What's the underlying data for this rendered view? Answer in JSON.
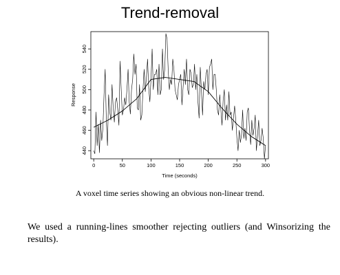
{
  "slide": {
    "title": "Trend-removal",
    "caption": "A voxel time series showing an obvious non-linear trend.",
    "body": "We used a running-lines smoother rejecting outliers (and Winsorizing the results)."
  },
  "chart_data": {
    "type": "line",
    "xlabel": "Time (seconds)",
    "ylabel": "Response",
    "xlim": [
      -5,
      305
    ],
    "ylim": [
      432,
      557
    ],
    "xticks": [
      0,
      50,
      100,
      150,
      200,
      250,
      300
    ],
    "yticks": [
      440,
      460,
      480,
      500,
      520,
      540
    ],
    "grid": false,
    "series": [
      {
        "x": [
          0,
          2,
          4,
          6,
          8,
          10,
          12,
          14,
          16,
          18,
          20,
          22,
          24,
          26,
          28,
          30,
          32,
          34,
          36,
          38,
          40,
          42,
          44,
          46,
          48,
          50,
          52,
          54,
          56,
          58,
          60,
          62,
          64,
          66,
          68,
          70,
          72,
          74,
          76,
          78,
          80,
          82,
          84,
          86,
          88,
          90,
          92,
          94,
          96,
          98,
          100,
          102,
          104,
          106,
          108,
          110,
          112,
          114,
          116,
          118,
          120,
          122,
          124,
          126,
          128,
          130,
          132,
          134,
          136,
          138,
          140,
          142,
          144,
          146,
          148,
          150,
          152,
          154,
          156,
          158,
          160,
          162,
          164,
          166,
          168,
          170,
          172,
          174,
          176,
          178,
          180,
          182,
          184,
          186,
          188,
          190,
          192,
          194,
          196,
          198,
          200,
          202,
          204,
          206,
          208,
          210,
          212,
          214,
          216,
          218,
          220,
          222,
          224,
          226,
          228,
          230,
          232,
          234,
          236,
          238,
          240,
          242,
          244,
          246,
          248,
          250,
          252,
          254,
          256,
          258,
          260,
          262,
          264,
          266,
          268,
          270,
          272,
          274,
          276,
          278,
          280,
          282,
          284,
          286,
          288,
          290,
          292,
          294,
          296,
          298,
          300
        ],
        "values": [
          440,
          437,
          478,
          445,
          466,
          438,
          470,
          450,
          462,
          495,
          520,
          470,
          445,
          495,
          478,
          470,
          505,
          482,
          468,
          488,
          492,
          480,
          465,
          528,
          500,
          475,
          480,
          492,
          485,
          500,
          520,
          488,
          476,
          500,
          510,
          535,
          515,
          525,
          482,
          480,
          505,
          470,
          475,
          500,
          520,
          498,
          512,
          530,
          502,
          488,
          510,
          540,
          500,
          515,
          515,
          520,
          495,
          525,
          495,
          500,
          540,
          510,
          520,
          555,
          550,
          520,
          500,
          510,
          505,
          530,
          520,
          500,
          495,
          490,
          505,
          510,
          515,
          485,
          502,
          520,
          505,
          530,
          500,
          495,
          520,
          516,
          502,
          505,
          525,
          500,
          515,
          488,
          472,
          522,
          500,
          475,
          508,
          500,
          515,
          520,
          495,
          522,
          525,
          530,
          500,
          515,
          515,
          500,
          480,
          475,
          495,
          480,
          465,
          490,
          500,
          470,
          485,
          470,
          498,
          475,
          478,
          460,
          472,
          484,
          470,
          452,
          440,
          460,
          448,
          455,
          480,
          452,
          462,
          450,
          478,
          482,
          460,
          446,
          470,
          455,
          462,
          475,
          440,
          455,
          470,
          445,
          450,
          462,
          452,
          432,
          445
        ],
        "color": "#000000"
      },
      {
        "x": [
          0,
          25,
          50,
          75,
          100,
          125,
          150,
          175,
          200,
          225,
          250,
          275,
          300
        ],
        "values": [
          463,
          470,
          479,
          491,
          510,
          512,
          510,
          508,
          498,
          481,
          466,
          454,
          445
        ],
        "color": "#000000"
      }
    ]
  }
}
